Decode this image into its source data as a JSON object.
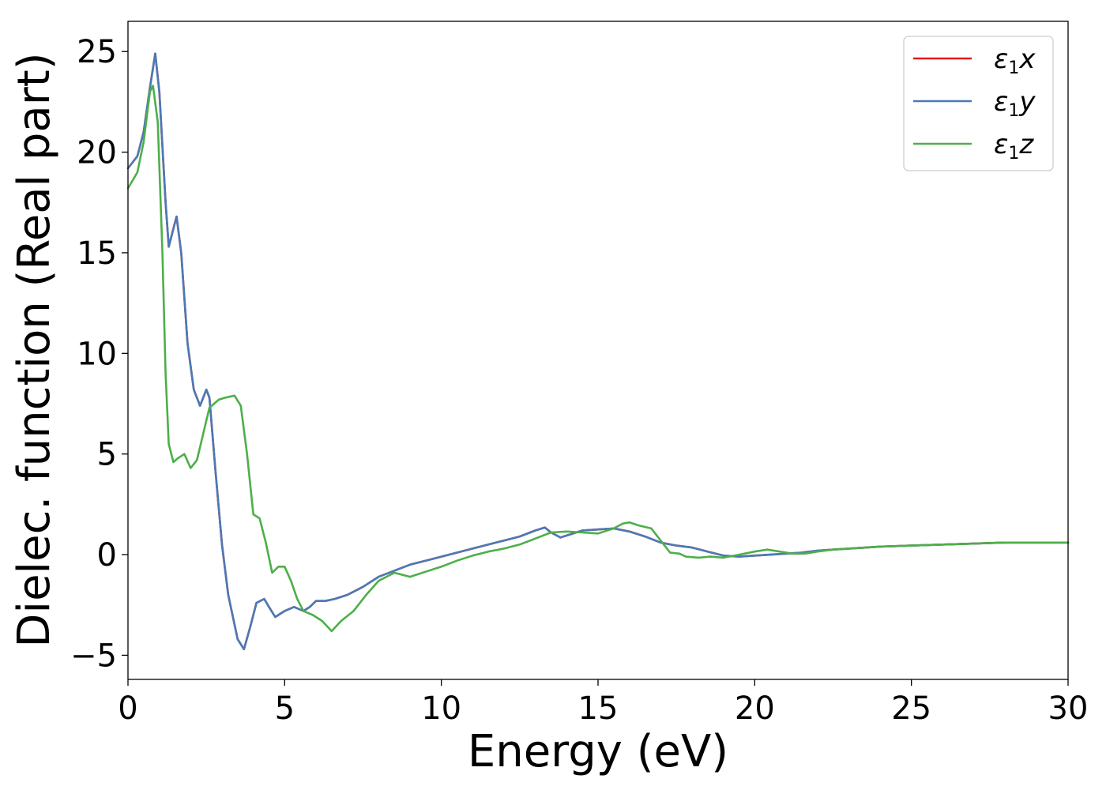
{
  "chart_data": {
    "type": "line",
    "xlabel": "Energy (eV)",
    "ylabel": "Dielec. function (Real part)",
    "xlim": [
      0,
      30
    ],
    "ylim": [
      -6.2,
      26.5
    ],
    "x_ticks": [
      0,
      5,
      10,
      15,
      20,
      25,
      30
    ],
    "x_tick_labels": [
      "0",
      "5",
      "10",
      "15",
      "20",
      "25",
      "30"
    ],
    "y_ticks": [
      -5,
      0,
      5,
      10,
      15,
      20,
      25
    ],
    "y_tick_labels": [
      "−5",
      "0",
      "5",
      "10",
      "15",
      "20",
      "25"
    ],
    "grid": false,
    "legend_position": "top-right",
    "series": [
      {
        "name": "ε₁x",
        "label_main": "ε",
        "label_sub": "1",
        "label_var": "x",
        "color": "#e41a1c",
        "x": [
          0,
          0.3,
          0.5,
          0.7,
          0.87,
          1.0,
          1.2,
          1.3,
          1.45,
          1.55,
          1.7,
          1.9,
          2.1,
          2.3,
          2.5,
          2.6,
          2.8,
          3.0,
          3.2,
          3.5,
          3.7,
          3.9,
          4.1,
          4.35,
          4.5,
          4.7,
          5.0,
          5.3,
          5.6,
          5.8,
          6.0,
          6.3,
          6.6,
          7.0,
          7.5,
          8.0,
          8.5,
          9.0,
          9.5,
          10.0,
          10.5,
          11.0,
          11.5,
          12.0,
          12.5,
          13.0,
          13.3,
          13.5,
          13.8,
          14.0,
          14.5,
          15.0,
          15.5,
          16.0,
          16.5,
          17.0,
          17.5,
          18.0,
          18.5,
          19.0,
          19.5,
          20.0,
          20.5,
          21.0,
          21.5,
          22.0,
          22.5,
          23.0,
          24.0,
          25.0,
          26.0,
          27.0,
          28.0,
          29.0,
          30.0
        ],
        "y": [
          19.2,
          19.8,
          21.0,
          23.2,
          24.9,
          23.0,
          17.5,
          15.3,
          16.2,
          16.8,
          15.0,
          10.5,
          8.2,
          7.4,
          8.2,
          7.8,
          4.0,
          0.5,
          -2.0,
          -4.2,
          -4.7,
          -3.6,
          -2.4,
          -2.2,
          -2.6,
          -3.1,
          -2.8,
          -2.6,
          -2.8,
          -2.6,
          -2.3,
          -2.3,
          -2.2,
          -2.0,
          -1.6,
          -1.1,
          -0.8,
          -0.5,
          -0.3,
          -0.1,
          0.1,
          0.3,
          0.5,
          0.7,
          0.9,
          1.2,
          1.35,
          1.1,
          0.85,
          0.95,
          1.2,
          1.25,
          1.3,
          1.15,
          0.9,
          0.6,
          0.45,
          0.35,
          0.15,
          -0.05,
          -0.1,
          -0.05,
          0.0,
          0.05,
          0.1,
          0.2,
          0.25,
          0.3,
          0.4,
          0.45,
          0.5,
          0.55,
          0.6,
          0.6,
          0.6
        ]
      },
      {
        "name": "ε₁y",
        "label_main": "ε",
        "label_sub": "1",
        "label_var": "y",
        "color": "#4a7ab5",
        "x": [
          0,
          0.3,
          0.5,
          0.7,
          0.87,
          1.0,
          1.2,
          1.3,
          1.45,
          1.55,
          1.7,
          1.9,
          2.1,
          2.3,
          2.5,
          2.6,
          2.8,
          3.0,
          3.2,
          3.5,
          3.7,
          3.9,
          4.1,
          4.35,
          4.5,
          4.7,
          5.0,
          5.3,
          5.6,
          5.8,
          6.0,
          6.3,
          6.6,
          7.0,
          7.5,
          8.0,
          8.5,
          9.0,
          9.5,
          10.0,
          10.5,
          11.0,
          11.5,
          12.0,
          12.5,
          13.0,
          13.3,
          13.5,
          13.8,
          14.0,
          14.5,
          15.0,
          15.5,
          16.0,
          16.5,
          17.0,
          17.5,
          18.0,
          18.5,
          19.0,
          19.5,
          20.0,
          20.5,
          21.0,
          21.5,
          22.0,
          22.5,
          23.0,
          24.0,
          25.0,
          26.0,
          27.0,
          28.0,
          29.0,
          30.0
        ],
        "y": [
          19.2,
          19.8,
          21.0,
          23.2,
          24.9,
          23.0,
          17.5,
          15.3,
          16.2,
          16.8,
          15.0,
          10.5,
          8.2,
          7.4,
          8.2,
          7.8,
          4.0,
          0.5,
          -2.0,
          -4.2,
          -4.7,
          -3.6,
          -2.4,
          -2.2,
          -2.6,
          -3.1,
          -2.8,
          -2.6,
          -2.8,
          -2.6,
          -2.3,
          -2.3,
          -2.2,
          -2.0,
          -1.6,
          -1.1,
          -0.8,
          -0.5,
          -0.3,
          -0.1,
          0.1,
          0.3,
          0.5,
          0.7,
          0.9,
          1.2,
          1.35,
          1.1,
          0.85,
          0.95,
          1.2,
          1.25,
          1.3,
          1.15,
          0.9,
          0.6,
          0.45,
          0.35,
          0.15,
          -0.05,
          -0.1,
          -0.05,
          0.0,
          0.05,
          0.1,
          0.2,
          0.25,
          0.3,
          0.4,
          0.45,
          0.5,
          0.55,
          0.6,
          0.6,
          0.6
        ]
      },
      {
        "name": "ε₁z",
        "label_main": "ε",
        "label_sub": "1",
        "label_var": "z",
        "color": "#4daf4a",
        "x": [
          0,
          0.3,
          0.5,
          0.7,
          0.8,
          0.95,
          1.1,
          1.2,
          1.3,
          1.45,
          1.6,
          1.8,
          2.0,
          2.2,
          2.4,
          2.6,
          2.9,
          3.1,
          3.4,
          3.6,
          3.8,
          4.0,
          4.2,
          4.4,
          4.6,
          4.8,
          5.0,
          5.2,
          5.4,
          5.6,
          5.9,
          6.2,
          6.5,
          6.8,
          7.2,
          7.6,
          8.0,
          8.5,
          9.0,
          9.5,
          10.0,
          10.5,
          11.0,
          11.5,
          12.0,
          12.5,
          13.0,
          13.5,
          14.0,
          14.5,
          15.0,
          15.5,
          15.8,
          16.0,
          16.3,
          16.7,
          17.0,
          17.3,
          17.6,
          17.8,
          18.2,
          18.6,
          19.0,
          19.5,
          20.0,
          20.4,
          20.8,
          21.2,
          21.6,
          22.0,
          22.5,
          23.0,
          24.0,
          25.0,
          26.0,
          27.0,
          28.0,
          29.0,
          30.0
        ],
        "y": [
          18.2,
          19.0,
          20.5,
          23.0,
          23.3,
          21.5,
          15.0,
          9.0,
          5.5,
          4.6,
          4.8,
          5.0,
          4.3,
          4.7,
          6.0,
          7.3,
          7.7,
          7.8,
          7.9,
          7.4,
          5.0,
          2.0,
          1.8,
          0.6,
          -0.9,
          -0.6,
          -0.6,
          -1.3,
          -2.2,
          -2.8,
          -3.0,
          -3.3,
          -3.8,
          -3.3,
          -2.8,
          -2.0,
          -1.3,
          -0.9,
          -1.1,
          -0.85,
          -0.6,
          -0.3,
          -0.05,
          0.15,
          0.3,
          0.5,
          0.8,
          1.1,
          1.15,
          1.1,
          1.05,
          1.3,
          1.55,
          1.6,
          1.45,
          1.3,
          0.7,
          0.1,
          0.05,
          -0.1,
          -0.15,
          -0.1,
          -0.15,
          0.0,
          0.15,
          0.25,
          0.15,
          0.05,
          0.05,
          0.15,
          0.25,
          0.3,
          0.4,
          0.45,
          0.5,
          0.55,
          0.6,
          0.6,
          0.6
        ]
      }
    ]
  }
}
